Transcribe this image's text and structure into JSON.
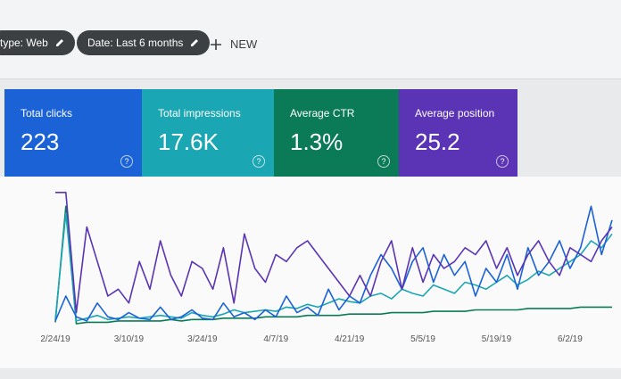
{
  "toolbar": {
    "chips": [
      "type: Web",
      "Date: Last 6 months"
    ],
    "new_button": "NEW"
  },
  "cards": [
    {
      "label": "Total clicks",
      "value": "223",
      "color": "#1a62d6"
    },
    {
      "label": "Total impressions",
      "value": "17.6K",
      "color": "#1aa6b3"
    },
    {
      "label": "Average CTR",
      "value": "1.3%",
      "color": "#0b7a57"
    },
    {
      "label": "Average position",
      "value": "25.2",
      "color": "#5a34b4"
    }
  ],
  "chart_data": {
    "type": "line",
    "categories": [
      "2/24/19",
      null,
      null,
      null,
      null,
      null,
      null,
      "3/10/19",
      null,
      null,
      null,
      null,
      null,
      null,
      "3/24/19",
      null,
      null,
      null,
      null,
      null,
      null,
      "4/7/19",
      null,
      null,
      null,
      null,
      null,
      null,
      "4/21/19",
      null,
      null,
      null,
      null,
      null,
      null,
      "5/5/19",
      null,
      null,
      null,
      null,
      null,
      null,
      "5/19/19",
      null,
      null,
      null,
      null,
      null,
      null,
      "6/2/19",
      null,
      null,
      null,
      null
    ],
    "series": [
      {
        "color": "#0b7a57",
        "values": [
          1,
          85,
          0,
          1,
          1,
          1,
          2,
          2,
          2,
          2,
          2,
          3,
          2,
          3,
          3,
          3,
          4,
          4,
          4,
          4,
          5,
          5,
          5,
          5,
          6,
          6,
          6,
          6,
          7,
          7,
          7,
          7,
          8,
          8,
          8,
          8,
          9,
          9,
          9,
          9,
          10,
          10,
          10,
          10,
          10,
          11,
          11,
          11,
          11,
          11,
          12,
          12,
          12,
          12
        ]
      },
      {
        "color": "#1aa6b3",
        "values": [
          3,
          80,
          2,
          4,
          6,
          3,
          4,
          5,
          4,
          5,
          6,
          5,
          4,
          8,
          6,
          5,
          7,
          10,
          8,
          9,
          10,
          9,
          12,
          11,
          14,
          12,
          15,
          18,
          16,
          15,
          20,
          22,
          18,
          25,
          22,
          20,
          28,
          25,
          22,
          30,
          28,
          25,
          30,
          35,
          28,
          32,
          38,
          35,
          40,
          45,
          50,
          60,
          55,
          65
        ]
      },
      {
        "color": "#1a62d6",
        "values": [
          2,
          20,
          5,
          2,
          15,
          5,
          3,
          8,
          4,
          3,
          12,
          3,
          5,
          10,
          4,
          3,
          15,
          5,
          8,
          3,
          10,
          5,
          20,
          8,
          12,
          6,
          25,
          10,
          20,
          15,
          35,
          50,
          40,
          25,
          45,
          55,
          30,
          50,
          35,
          45,
          20,
          40,
          30,
          50,
          25,
          55,
          35,
          45,
          60,
          40,
          55,
          85,
          50,
          75
        ]
      },
      {
        "color": "#5a34b4",
        "values": [
          95,
          95,
          8,
          70,
          45,
          20,
          25,
          15,
          45,
          25,
          60,
          35,
          20,
          45,
          40,
          25,
          55,
          15,
          65,
          40,
          30,
          50,
          45,
          55,
          60,
          50,
          40,
          30,
          20,
          35,
          20,
          45,
          60,
          25,
          55,
          30,
          50,
          40,
          45,
          55,
          50,
          60,
          40,
          55,
          35,
          50,
          60,
          45,
          35,
          55,
          50,
          45,
          60,
          70
        ]
      }
    ]
  }
}
